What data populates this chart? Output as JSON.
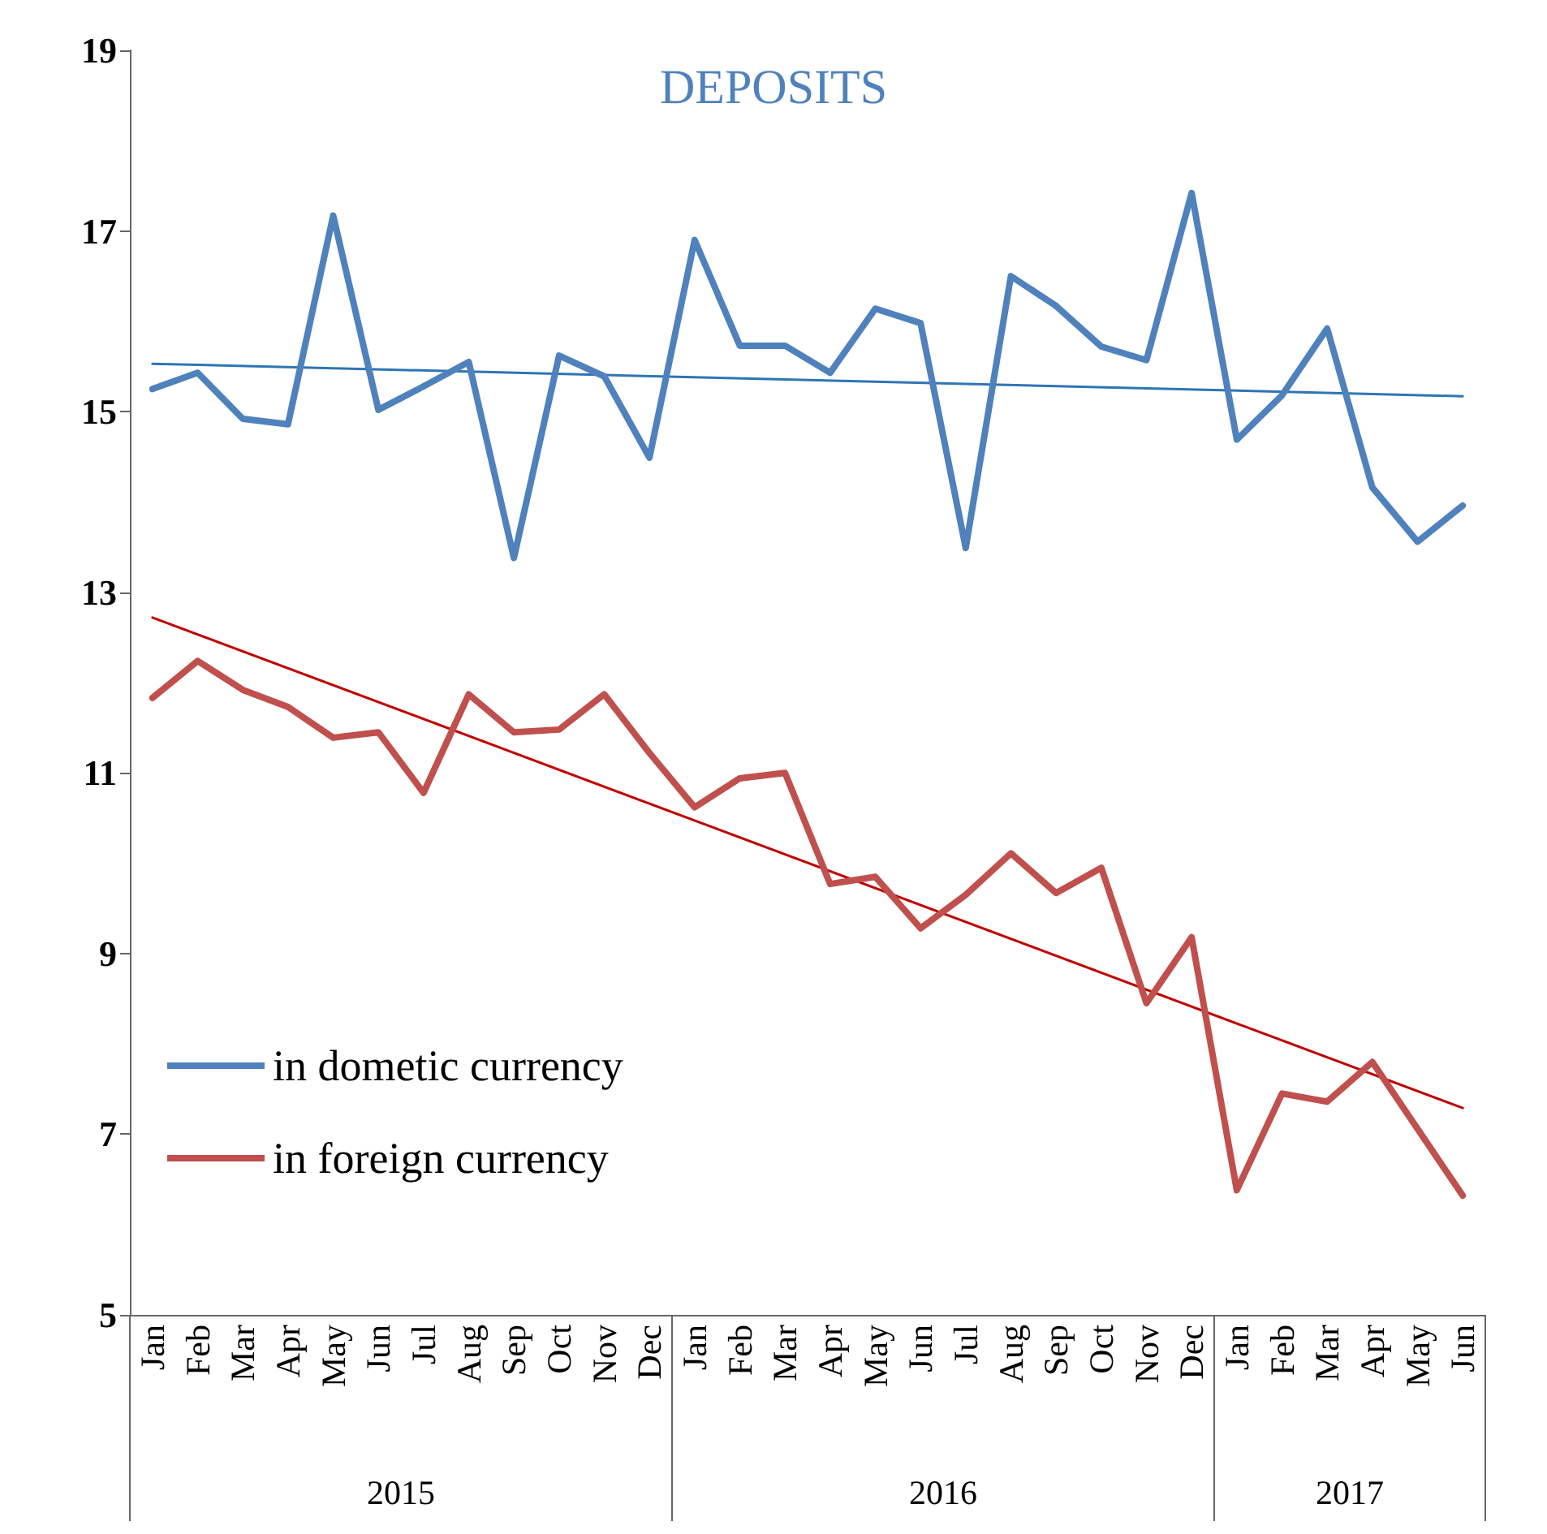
{
  "chart_data": {
    "type": "line",
    "title": "DEPOSITS",
    "categories": [
      "Jan",
      "Feb",
      "Mar",
      "Apr",
      "May",
      "Jun",
      "Jul",
      "Aug",
      "Sep",
      "Oct",
      "Nov",
      "Dec",
      "Jan",
      "Feb",
      "Mar",
      "Apr",
      "May",
      "Jun",
      "Jul",
      "Aug",
      "Sep",
      "Oct",
      "Nov",
      "Dec",
      "Jan",
      "Feb",
      "Mar",
      "Apr",
      "May",
      "Jun"
    ],
    "annotations": [
      "2015",
      "2016",
      "2017"
    ],
    "series": [
      {
        "name": "in dometic currency",
        "color": "#4f81bd",
        "values": [
          15.25,
          15.43,
          14.92,
          14.86,
          17.17,
          15.02,
          15.28,
          15.55,
          13.38,
          15.62,
          15.39,
          14.49,
          16.9,
          15.73,
          15.73,
          15.43,
          16.14,
          15.98,
          13.49,
          16.5,
          16.17,
          15.72,
          15.57,
          17.42,
          14.69,
          15.18,
          15.92,
          14.16,
          13.56,
          13.96
        ]
      },
      {
        "name": "in foreign currency",
        "color": "#c0504d",
        "values": [
          11.83,
          12.24,
          11.92,
          11.73,
          11.39,
          11.45,
          10.78,
          11.87,
          11.45,
          11.48,
          11.87,
          11.22,
          10.62,
          10.94,
          11.0,
          9.77,
          9.85,
          9.28,
          9.65,
          10.11,
          9.67,
          9.95,
          8.45,
          9.18,
          6.38,
          7.45,
          7.36,
          7.8,
          7.06,
          6.32
        ]
      },
      {
        "type": "line",
        "color": "#2e75b6",
        "values": [
          15.53,
          null,
          null,
          null,
          null,
          null,
          null,
          null,
          null,
          null,
          null,
          null,
          null,
          null,
          null,
          null,
          null,
          null,
          null,
          null,
          null,
          null,
          null,
          null,
          null,
          null,
          null,
          null,
          null,
          15.17
        ]
      },
      {
        "type": "line",
        "color": "#c00000",
        "values": [
          12.72,
          null,
          null,
          null,
          null,
          null,
          null,
          null,
          null,
          null,
          null,
          null,
          null,
          null,
          null,
          null,
          null,
          null,
          null,
          null,
          null,
          null,
          null,
          null,
          null,
          null,
          null,
          null,
          null,
          7.29
        ]
      }
    ],
    "ylim": [
      5,
      19
    ],
    "yticks": [
      5,
      7,
      9,
      11,
      13,
      15,
      17,
      19
    ],
    "grid": false,
    "legend": "left",
    "marker": "none"
  }
}
